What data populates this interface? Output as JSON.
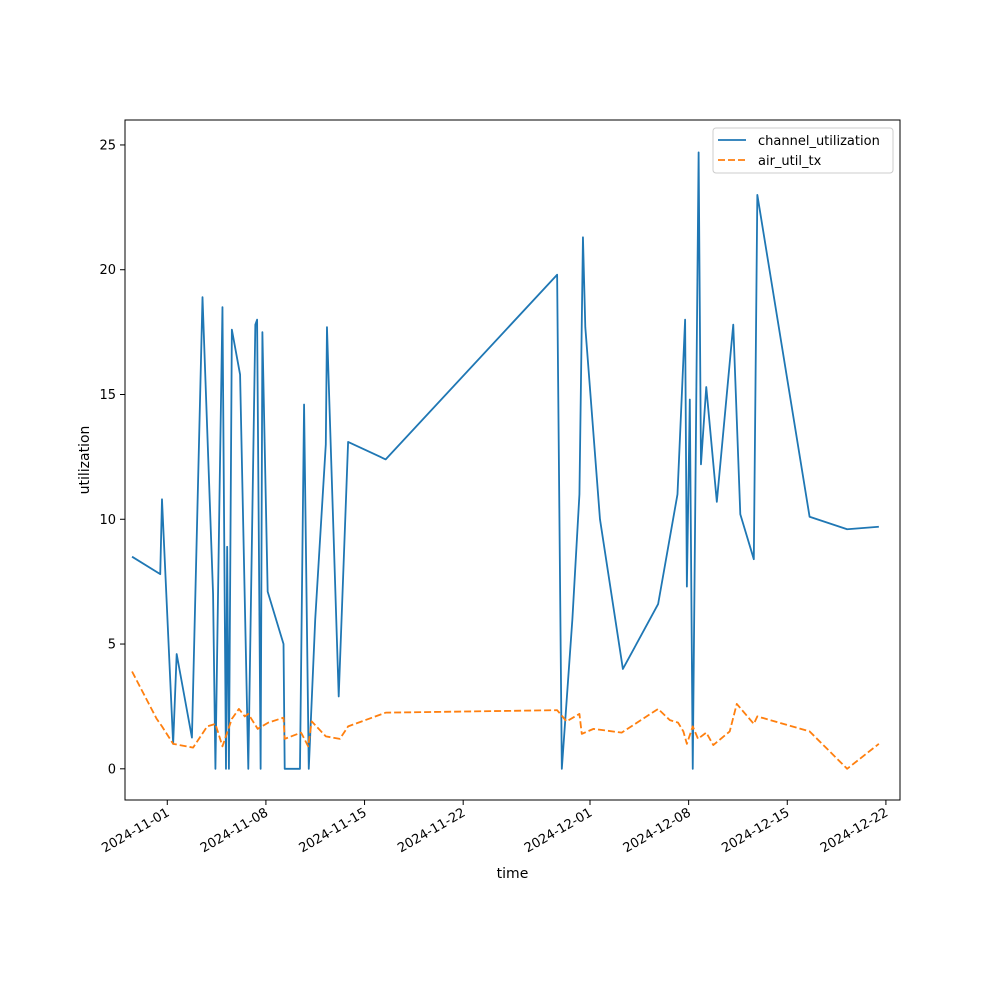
{
  "chart_data": {
    "type": "line",
    "title": "",
    "xlabel": "time",
    "ylabel": "utilization",
    "x_type": "date",
    "xlim": [
      "2024-10-29",
      "2024-12-23"
    ],
    "ylim": [
      -1.25,
      26.0
    ],
    "x_ticks": [
      "2024-11-01",
      "2024-11-08",
      "2024-11-15",
      "2024-11-22",
      "2024-12-01",
      "2024-12-08",
      "2024-12-15",
      "2024-12-22"
    ],
    "y_ticks": [
      0,
      5,
      10,
      15,
      20,
      25
    ],
    "grid": false,
    "legend_position": "upper right",
    "series": [
      {
        "name": "channel_utilization",
        "color": "#1f77b4",
        "dash": "solid",
        "points": [
          [
            "2024-10-29T12:00",
            8.5
          ],
          [
            "2024-10-31T12:00",
            7.8
          ],
          [
            "2024-10-31T15:00",
            10.8
          ],
          [
            "2024-11-01T10:00",
            1.0
          ],
          [
            "2024-11-01T16:00",
            4.6
          ],
          [
            "2024-11-02T18:00",
            1.25
          ],
          [
            "2024-11-03T12:00",
            18.9
          ],
          [
            "2024-11-04T06:00",
            7.0
          ],
          [
            "2024-11-04T10:00",
            0.0
          ],
          [
            "2024-11-04T17:00",
            11.0
          ],
          [
            "2024-11-04T22:00",
            18.5
          ],
          [
            "2024-11-05T04:00",
            0.0
          ],
          [
            "2024-11-05T06:00",
            8.9
          ],
          [
            "2024-11-05T09:00",
            0.0
          ],
          [
            "2024-11-05T14:00",
            17.6
          ],
          [
            "2024-11-06T04:00",
            15.8
          ],
          [
            "2024-11-06T18:00",
            0.0
          ],
          [
            "2024-11-07T06:00",
            17.8
          ],
          [
            "2024-11-07T09:00",
            18.0
          ],
          [
            "2024-11-07T15:00",
            0.0
          ],
          [
            "2024-11-07T18:00",
            17.5
          ],
          [
            "2024-11-08T03:00",
            7.1
          ],
          [
            "2024-11-09T06:00",
            5.0
          ],
          [
            "2024-11-09T08:00",
            0.0
          ],
          [
            "2024-11-10T10:00",
            0.0
          ],
          [
            "2024-11-10T17:00",
            14.6
          ],
          [
            "2024-11-11T01:00",
            0.0
          ],
          [
            "2024-11-11T12:00",
            6.0
          ],
          [
            "2024-11-12T06:00",
            13.0
          ],
          [
            "2024-11-12T08:00",
            17.7
          ],
          [
            "2024-11-13T04:00",
            2.9
          ],
          [
            "2024-11-13T20:00",
            13.1
          ],
          [
            "2024-11-16T12:00",
            12.4
          ],
          [
            "2024-11-28T16:00",
            19.8
          ],
          [
            "2024-11-29T00:00",
            0.0
          ],
          [
            "2024-11-29T18:00",
            6.0
          ],
          [
            "2024-11-30T06:00",
            11.0
          ],
          [
            "2024-11-30T12:00",
            21.3
          ],
          [
            "2024-11-30T16:00",
            17.7
          ],
          [
            "2024-12-01T17:00",
            10.0
          ],
          [
            "2024-12-03T08:00",
            4.0
          ],
          [
            "2024-12-05T20:00",
            6.6
          ],
          [
            "2024-12-07T05:00",
            11.0
          ],
          [
            "2024-12-07T18:00",
            18.0
          ],
          [
            "2024-12-07T21:00",
            7.3
          ],
          [
            "2024-12-08T02:00",
            14.8
          ],
          [
            "2024-12-08T07:00",
            0.0
          ],
          [
            "2024-12-08T17:00",
            24.7
          ],
          [
            "2024-12-08T21:00",
            12.2
          ],
          [
            "2024-12-09T06:00",
            15.3
          ],
          [
            "2024-12-10T00:00",
            10.7
          ],
          [
            "2024-12-11T04:00",
            17.8
          ],
          [
            "2024-12-11T16:00",
            10.2
          ],
          [
            "2024-12-12T15:00",
            8.4
          ],
          [
            "2024-12-12T21:00",
            23.0
          ],
          [
            "2024-12-16T14:00",
            10.1
          ],
          [
            "2024-12-19T06:00",
            9.6
          ],
          [
            "2024-12-21T12:00",
            9.7
          ]
        ]
      },
      {
        "name": "air_util_tx",
        "color": "#ff7f0e",
        "dash": "dashed",
        "points": [
          [
            "2024-10-29T12:00",
            3.9
          ],
          [
            "2024-10-31T06:00",
            2.0
          ],
          [
            "2024-10-31T15:00",
            1.7
          ],
          [
            "2024-11-01T10:00",
            1.0
          ],
          [
            "2024-11-02T20:00",
            0.85
          ],
          [
            "2024-11-03T20:00",
            1.7
          ],
          [
            "2024-11-04T10:00",
            1.8
          ],
          [
            "2024-11-04T22:00",
            0.9
          ],
          [
            "2024-11-05T14:00",
            2.0
          ],
          [
            "2024-11-06T02:00",
            2.4
          ],
          [
            "2024-11-06T12:00",
            2.1
          ],
          [
            "2024-11-06T18:00",
            2.2
          ],
          [
            "2024-11-07T10:00",
            1.6
          ],
          [
            "2024-11-08T04:00",
            1.85
          ],
          [
            "2024-11-09T06:00",
            2.05
          ],
          [
            "2024-11-09T08:00",
            1.2
          ],
          [
            "2024-11-10T12:00",
            1.45
          ],
          [
            "2024-11-11T00:00",
            0.9
          ],
          [
            "2024-11-11T06:00",
            1.9
          ],
          [
            "2024-11-12T06:00",
            1.3
          ],
          [
            "2024-11-13T06:00",
            1.2
          ],
          [
            "2024-11-13T20:00",
            1.7
          ],
          [
            "2024-11-16T12:00",
            2.25
          ],
          [
            "2024-11-28T16:00",
            2.35
          ],
          [
            "2024-11-29T08:00",
            1.9
          ],
          [
            "2024-11-30T06:00",
            2.2
          ],
          [
            "2024-11-30T10:00",
            1.4
          ],
          [
            "2024-12-01T06:00",
            1.6
          ],
          [
            "2024-12-03T06:00",
            1.45
          ],
          [
            "2024-12-05T20:00",
            2.4
          ],
          [
            "2024-12-06T16:00",
            1.95
          ],
          [
            "2024-12-07T06:00",
            1.85
          ],
          [
            "2024-12-07T15:00",
            1.5
          ],
          [
            "2024-12-07T21:00",
            1.0
          ],
          [
            "2024-12-08T07:00",
            1.7
          ],
          [
            "2024-12-08T16:00",
            1.2
          ],
          [
            "2024-12-09T06:00",
            1.45
          ],
          [
            "2024-12-09T18:00",
            0.95
          ],
          [
            "2024-12-10T22:00",
            1.5
          ],
          [
            "2024-12-11T10:00",
            2.6
          ],
          [
            "2024-12-12T15:00",
            1.8
          ],
          [
            "2024-12-12T21:00",
            2.1
          ],
          [
            "2024-12-16T14:00",
            1.5
          ],
          [
            "2024-12-19T06:00",
            0.0
          ],
          [
            "2024-12-21T12:00",
            1.0
          ]
        ]
      }
    ]
  }
}
